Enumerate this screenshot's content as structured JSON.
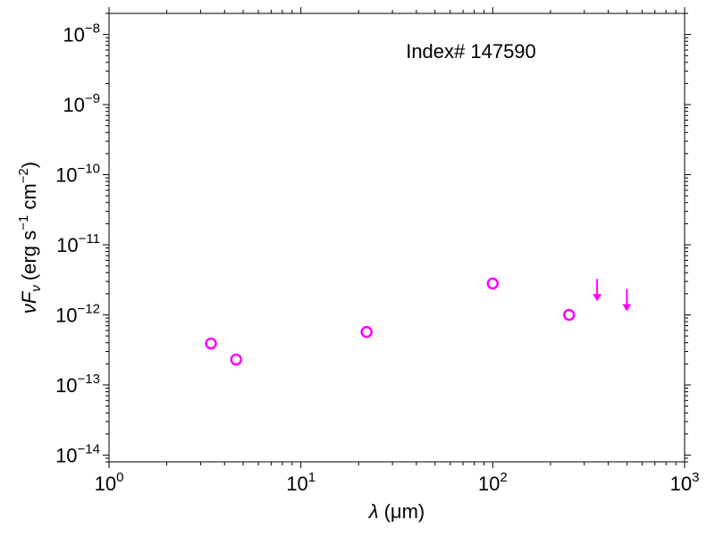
{
  "chart_data": {
    "type": "scatter",
    "title": "",
    "annotation": "Index# 147590",
    "xlabel": {
      "symbol": "λ",
      "unit": "(μm)"
    },
    "ylabel": {
      "symbol": "νF",
      "sub": "ν",
      "unit_prefix": "(erg s",
      "exp1": "−1",
      "unit_mid": " cm",
      "exp2": "−2",
      "unit_suffix": ")"
    },
    "xscale": "log",
    "yscale": "log",
    "xlim": [
      1,
      1000
    ],
    "ylim": [
      8e-15,
      2e-08
    ],
    "x_ticks": [
      {
        "base": "10",
        "exp": "0"
      },
      {
        "base": "10",
        "exp": "1"
      },
      {
        "base": "10",
        "exp": "2"
      },
      {
        "base": "10",
        "exp": "3"
      }
    ],
    "y_ticks": [
      {
        "base": "10",
        "exp": "−14"
      },
      {
        "base": "10",
        "exp": "−13"
      },
      {
        "base": "10",
        "exp": "−12"
      },
      {
        "base": "10",
        "exp": "−11"
      },
      {
        "base": "10",
        "exp": "−10"
      },
      {
        "base": "10",
        "exp": "−9"
      },
      {
        "base": "10",
        "exp": "−8"
      }
    ],
    "grid": false,
    "color": "#ff00ff",
    "series": [
      {
        "marker": "open-circle",
        "points": [
          {
            "x": 3.4,
            "y": 3.9e-13
          },
          {
            "x": 4.6,
            "y": 2.3e-13
          },
          {
            "x": 22,
            "y": 5.7e-13
          },
          {
            "x": 100,
            "y": 2.8e-12
          },
          {
            "x": 250,
            "y": 1e-12
          }
        ]
      },
      {
        "marker": "upper-limit-arrow",
        "points": [
          {
            "x": 350,
            "y": 2.5e-12
          },
          {
            "x": 500,
            "y": 1.8e-12
          }
        ]
      }
    ]
  }
}
